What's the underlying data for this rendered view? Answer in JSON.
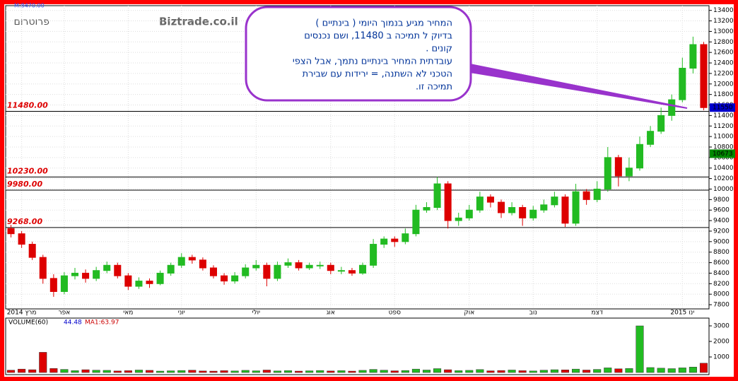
{
  "chart_data": {
    "type": "candlestick",
    "header_label": "M:8470.00",
    "symbol": "פרוטרום",
    "source": "Biztrade.co.il",
    "annotation": [
      "המחיר   מגיע     בנמוך היומי  ( בינתיים )",
      "בדיוק    ל תמיכה  ב  11480, ושם  נכנסים",
      "קונים .",
      "עובדתית המחיר  בינתיים נתמך, אבל הצפי",
      "הטכני לא  השתנה,  = ירידות עם שבירת",
      "תמיכה  זו."
    ],
    "categories": [
      null,
      "2014 מרץ",
      null,
      null,
      null,
      "אפר",
      null,
      null,
      null,
      null,
      null,
      "מאי",
      null,
      null,
      null,
      null,
      "יוני",
      null,
      null,
      null,
      null,
      null,
      null,
      "יולי",
      null,
      null,
      null,
      null,
      null,
      null,
      "אוג",
      null,
      null,
      null,
      null,
      null,
      "ספט",
      null,
      null,
      null,
      null,
      null,
      null,
      "אוק",
      null,
      null,
      null,
      null,
      null,
      "נוב",
      null,
      null,
      null,
      null,
      null,
      "דצמ",
      null,
      null,
      null,
      null,
      null,
      null,
      null,
      "2015 ינו",
      null,
      null
    ],
    "open": [
      9250,
      9150,
      8950,
      8700,
      8300,
      8050,
      8350,
      8400,
      8300,
      8450,
      8550,
      8350,
      8150,
      8250,
      8200,
      8400,
      8550,
      8700,
      8650,
      8500,
      8350,
      8250,
      8350,
      8500,
      8550,
      8300,
      8550,
      8600,
      8500,
      8550,
      8550,
      8450,
      8450,
      8400,
      8550,
      8950,
      9050,
      9000,
      9150,
      9600,
      9650,
      10100,
      9400,
      9450,
      9600,
      9850,
      9750,
      9550,
      9650,
      9450,
      9600,
      9700,
      9850,
      9350,
      9950,
      9800,
      10000,
      10600,
      10250,
      10400,
      10850,
      11100,
      11400,
      11700,
      12300,
      12750
    ],
    "high": [
      9320,
      9200,
      9000,
      8750,
      8380,
      8420,
      8500,
      8470,
      8520,
      8620,
      8600,
      8400,
      8320,
      8300,
      8450,
      8600,
      8780,
      8750,
      8700,
      8550,
      8400,
      8420,
      8570,
      8650,
      8600,
      8620,
      8680,
      8650,
      8600,
      8620,
      8600,
      8520,
      8500,
      8600,
      9050,
      9100,
      9100,
      9250,
      9700,
      9750,
      10230,
      10150,
      9550,
      9700,
      9950,
      9900,
      9800,
      9750,
      9700,
      9680,
      9800,
      9950,
      9900,
      10100,
      10000,
      10150,
      10800,
      10650,
      10600,
      11000,
      11200,
      11550,
      11800,
      12500,
      12900,
      12800
    ],
    "low": [
      9080,
      8880,
      8650,
      8200,
      7950,
      8000,
      8280,
      8220,
      8250,
      8400,
      8300,
      8080,
      8100,
      8120,
      8170,
      8350,
      8500,
      8580,
      8450,
      8300,
      8180,
      8200,
      8300,
      8450,
      8150,
      8250,
      8500,
      8450,
      8460,
      8480,
      8380,
      8380,
      8350,
      8370,
      8500,
      8880,
      8900,
      8950,
      9100,
      9550,
      9600,
      9250,
      9300,
      9400,
      9550,
      9650,
      9450,
      9500,
      9300,
      9400,
      9550,
      9650,
      9280,
      9300,
      9700,
      9750,
      9950,
      10050,
      10150,
      10350,
      10800,
      11050,
      11300,
      11650,
      12200,
      11500
    ],
    "close": [
      9150,
      8950,
      8700,
      8300,
      8050,
      8350,
      8400,
      8300,
      8450,
      8550,
      8350,
      8150,
      8250,
      8200,
      8400,
      8550,
      8700,
      8650,
      8500,
      8350,
      8250,
      8350,
      8500,
      8550,
      8300,
      8550,
      8600,
      8500,
      8550,
      8550,
      8450,
      8450,
      8400,
      8550,
      8950,
      9050,
      9000,
      9150,
      9600,
      9650,
      10100,
      9400,
      9450,
      9600,
      9850,
      9750,
      9550,
      9650,
      9450,
      9600,
      9700,
      9850,
      9350,
      9950,
      9800,
      10000,
      10600,
      10250,
      10400,
      10850,
      11100,
      11400,
      11700,
      12300,
      12750,
      11550
    ],
    "up_color": "#22bb22",
    "down_color": "#dd0000",
    "ylim": [
      7720,
      13490
    ],
    "yticks": [
      7800,
      8000,
      8200,
      8400,
      8600,
      8800,
      9000,
      9200,
      9400,
      9600,
      9800,
      10000,
      10200,
      10400,
      10600,
      10800,
      11000,
      11200,
      11400,
      11600,
      11800,
      12000,
      12200,
      12400,
      12600,
      12800,
      13000,
      13200,
      13400
    ],
    "levels": [
      {
        "value": 11480,
        "label": "11480.00"
      },
      {
        "value": 10230,
        "label": "10230.00"
      },
      {
        "value": 9980,
        "label": "9980.00"
      },
      {
        "value": 9268,
        "label": "9268.00"
      }
    ],
    "price_markers": [
      {
        "value": 11550,
        "color": "#0000cc"
      },
      {
        "value": 10673,
        "color": "#008800"
      }
    ],
    "volume": {
      "title": "VOLUME(60)",
      "last": "44.48",
      "ma": "MA1:63.97",
      "values": [
        150,
        220,
        180,
        1300,
        260,
        200,
        120,
        180,
        150,
        140,
        100,
        120,
        160,
        140,
        90,
        110,
        130,
        150,
        100,
        90,
        120,
        100,
        140,
        110,
        160,
        100,
        120,
        90,
        110,
        130,
        100,
        120,
        90,
        140,
        200,
        150,
        110,
        130,
        220,
        160,
        250,
        180,
        120,
        140,
        190,
        110,
        130,
        160,
        120,
        100,
        150,
        180,
        170,
        220,
        160,
        200,
        300,
        240,
        260,
        3000,
        320,
        280,
        250,
        300,
        350,
        600
      ],
      "ylim": [
        0,
        3500
      ],
      "yticks": [
        1000,
        2000,
        3000
      ]
    }
  }
}
